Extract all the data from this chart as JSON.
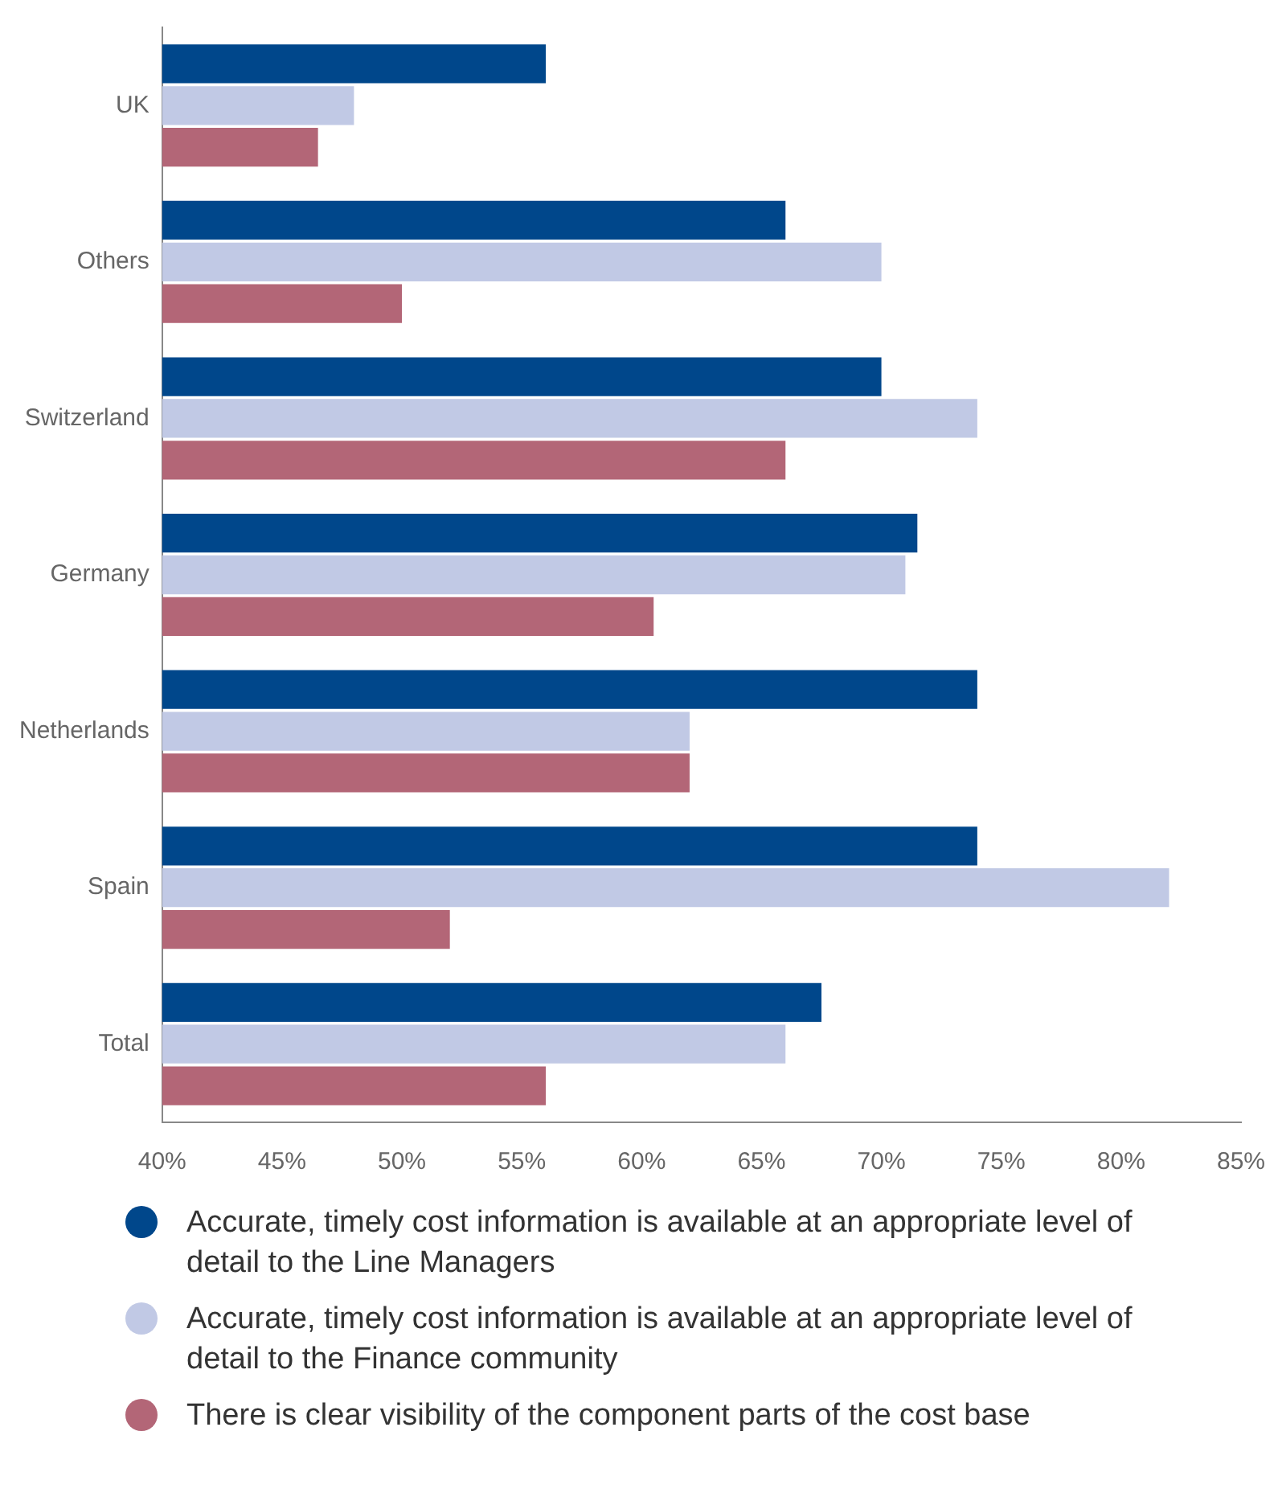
{
  "chart_data": {
    "type": "bar",
    "orientation": "horizontal",
    "categories": [
      "UK",
      "Others",
      "Switzerland",
      "Germany",
      "Netherlands",
      "Spain",
      "Total"
    ],
    "series": [
      {
        "name": "Accurate, timely cost information is available at an appropriate level of detail to the Line Managers",
        "color": "#00478b",
        "values": [
          56,
          66,
          70,
          71.5,
          74,
          74,
          67.5
        ]
      },
      {
        "name": "Accurate, timely cost information is available at an appropriate level of detail to the Finance community",
        "color": "#c1c9e5",
        "values": [
          48,
          70,
          74,
          71,
          62,
          82,
          66
        ]
      },
      {
        "name": "There is clear visibility of the component parts of the cost base",
        "color": "#b36677",
        "values": [
          46.5,
          50,
          66,
          60.5,
          62,
          52,
          56
        ]
      }
    ],
    "xlim": [
      40,
      85
    ],
    "xticks": [
      {
        "value": 40,
        "label": "40%"
      },
      {
        "value": 45,
        "label": "45%"
      },
      {
        "value": 50,
        "label": "50%"
      },
      {
        "value": 55,
        "label": "55%"
      },
      {
        "value": 60,
        "label": "60%"
      },
      {
        "value": 65,
        "label": "65%"
      },
      {
        "value": 70,
        "label": "70%"
      },
      {
        "value": 75,
        "label": "75%"
      },
      {
        "value": 80,
        "label": "80%"
      },
      {
        "value": 85,
        "label": "85%"
      }
    ],
    "grid": false,
    "legend": "bottom",
    "marker": "circle"
  }
}
